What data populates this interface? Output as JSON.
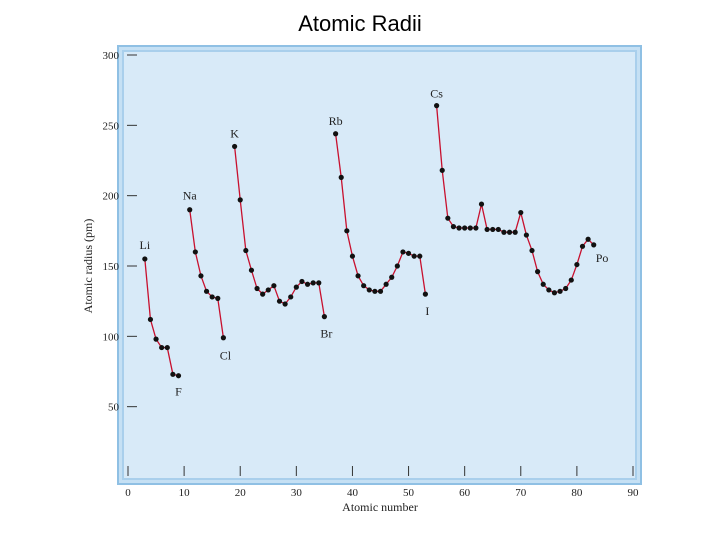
{
  "chart_data": {
    "type": "line",
    "title": "Atomic Radii",
    "x_label": "Atomic number",
    "y_label": "Atomic radius (pm)",
    "x": [
      3,
      4,
      5,
      6,
      7,
      8,
      9,
      10,
      11,
      12,
      13,
      14,
      15,
      16,
      17,
      18,
      19,
      20,
      21,
      22,
      23,
      24,
      25,
      26,
      27,
      28,
      29,
      30,
      31,
      32,
      33,
      34,
      35,
      36,
      37,
      38,
      39,
      40,
      41,
      42,
      43,
      44,
      45,
      46,
      47,
      48,
      49,
      50,
      51,
      52,
      53,
      54,
      55,
      56,
      57,
      58,
      59,
      60,
      61,
      62,
      63,
      64,
      65,
      66,
      67,
      68,
      69,
      70,
      71,
      72,
      73,
      74,
      75,
      76,
      77,
      78,
      79,
      80,
      81,
      82,
      83
    ],
    "series": [
      {
        "name": "Atomic radius",
        "color": "#c8102e",
        "values": [
          155,
          112,
          98,
          92,
          92,
          73,
          72,
          null,
          190,
          160,
          143,
          132,
          128,
          127,
          99,
          null,
          235,
          197,
          161,
          147,
          134,
          130,
          133,
          136,
          125,
          123,
          128,
          135,
          139,
          137,
          138,
          138,
          114,
          null,
          244,
          213,
          175,
          157,
          143,
          136,
          133,
          132,
          132,
          137,
          142,
          150,
          160,
          159,
          157,
          157,
          130,
          null,
          264,
          218,
          184,
          178,
          177,
          177,
          177,
          177,
          194,
          176,
          176,
          176,
          174,
          174,
          174,
          188,
          172,
          161,
          146,
          137,
          133,
          131,
          132,
          134,
          140,
          151,
          164,
          169,
          165
        ]
      }
    ],
    "annotations": [
      {
        "text": "Li",
        "x": 3
      },
      {
        "text": "F",
        "x": 9
      },
      {
        "text": "Na",
        "x": 11
      },
      {
        "text": "Cl",
        "x": 17
      },
      {
        "text": "K",
        "x": 19
      },
      {
        "text": "Br",
        "x": 35
      },
      {
        "text": "Rb",
        "x": 37
      },
      {
        "text": "I",
        "x": 53
      },
      {
        "text": "Cs",
        "x": 55
      },
      {
        "text": "Po",
        "x": 83
      }
    ],
    "xlim": [
      0,
      90
    ],
    "xticks": [
      0,
      10,
      20,
      30,
      40,
      50,
      60,
      70,
      80,
      90
    ],
    "ylim": [
      0,
      300
    ],
    "yticks": [
      50,
      100,
      150,
      200,
      250,
      300
    ]
  }
}
